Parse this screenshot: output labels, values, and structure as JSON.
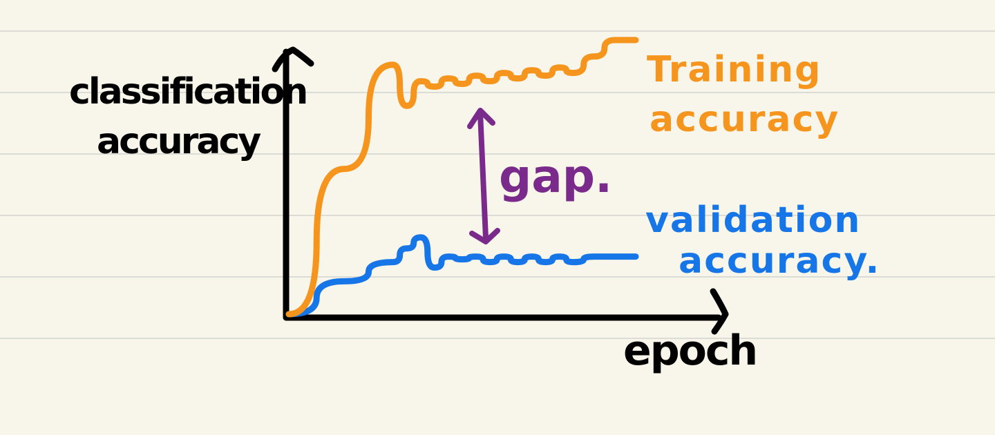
{
  "chart_data": {
    "type": "line",
    "title": "",
    "xlabel": "epoch",
    "ylabel_lines": [
      "classification",
      "accuracy"
    ],
    "x": [
      0,
      0.16,
      0.3,
      0.34,
      0.38,
      0.42,
      0.46,
      0.5,
      0.54,
      0.58,
      0.62,
      0.66,
      0.7,
      0.74,
      0.78,
      0.82,
      0.88,
      0.94,
      1.0
    ],
    "series": [
      {
        "name_lines": [
          "Training",
          "accuracy"
        ],
        "color": "#f5951e",
        "values": [
          0,
          0.53,
          0.91,
          0.76,
          0.85,
          0.83,
          0.86,
          0.84,
          0.87,
          0.85,
          0.88,
          0.86,
          0.89,
          0.87,
          0.9,
          0.88,
          0.94,
          1.0,
          1.0
        ]
      },
      {
        "name_lines": [
          "validation",
          "accuracy."
        ],
        "color": "#1676e8",
        "values": [
          0,
          0.12,
          0.19,
          0.24,
          0.28,
          0.17,
          0.21,
          0.2,
          0.21,
          0.19,
          0.21,
          0.19,
          0.21,
          0.19,
          0.21,
          0.19,
          0.21,
          0.21,
          0.21
        ]
      }
    ],
    "annotation": {
      "text": "gap.",
      "color": "#7a2a8a"
    },
    "grid": false
  }
}
